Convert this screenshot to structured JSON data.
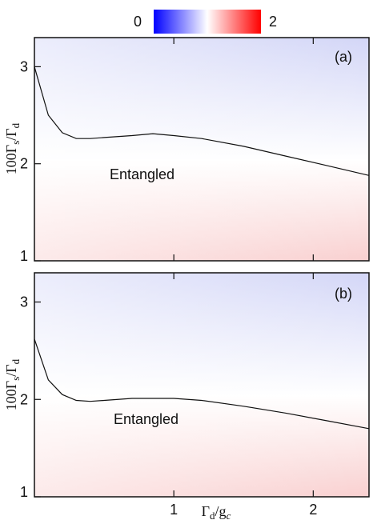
{
  "colorbar": {
    "min_label": "0",
    "max_label": "2",
    "low_color": "#0000ff",
    "mid_color": "#ffffff",
    "high_color": "#ff0000"
  },
  "ylabel": "100Γs/Γd",
  "xlabel": "Γd/gc",
  "chart_data": [
    {
      "type": "heatmap",
      "panel_label": "(a)",
      "region_label": "Entangled",
      "xlim": [
        0.0,
        2.4
      ],
      "ylim": [
        1,
        3.3
      ],
      "yticks": [
        1,
        2,
        3
      ],
      "xticks": [
        1,
        2
      ],
      "ytick_labels": [
        "1",
        "2",
        "3"
      ],
      "boundary": {
        "x": [
          0.0,
          0.1,
          0.2,
          0.3,
          0.4,
          0.5,
          0.7,
          0.85,
          1.0,
          1.2,
          1.5,
          1.8,
          2.1,
          2.4
        ],
        "y": [
          3.0,
          2.5,
          2.32,
          2.26,
          2.26,
          2.27,
          2.29,
          2.31,
          2.29,
          2.26,
          2.18,
          2.08,
          1.98,
          1.88
        ]
      }
    },
    {
      "type": "heatmap",
      "panel_label": "(b)",
      "region_label": "Entangled",
      "xlim": [
        0.0,
        2.4
      ],
      "ylim": [
        1,
        3.3
      ],
      "yticks": [
        1,
        2,
        3
      ],
      "xticks": [
        1,
        2
      ],
      "ytick_labels": [
        "1",
        "2",
        "3"
      ],
      "xtick_labels": [
        "1",
        "2"
      ],
      "boundary": {
        "x": [
          0.0,
          0.1,
          0.2,
          0.3,
          0.4,
          0.5,
          0.7,
          0.85,
          1.0,
          1.2,
          1.5,
          1.8,
          2.1,
          2.4
        ],
        "y": [
          2.62,
          2.2,
          2.05,
          1.99,
          1.98,
          1.99,
          2.01,
          2.01,
          2.01,
          1.99,
          1.93,
          1.86,
          1.78,
          1.7
        ]
      }
    }
  ]
}
